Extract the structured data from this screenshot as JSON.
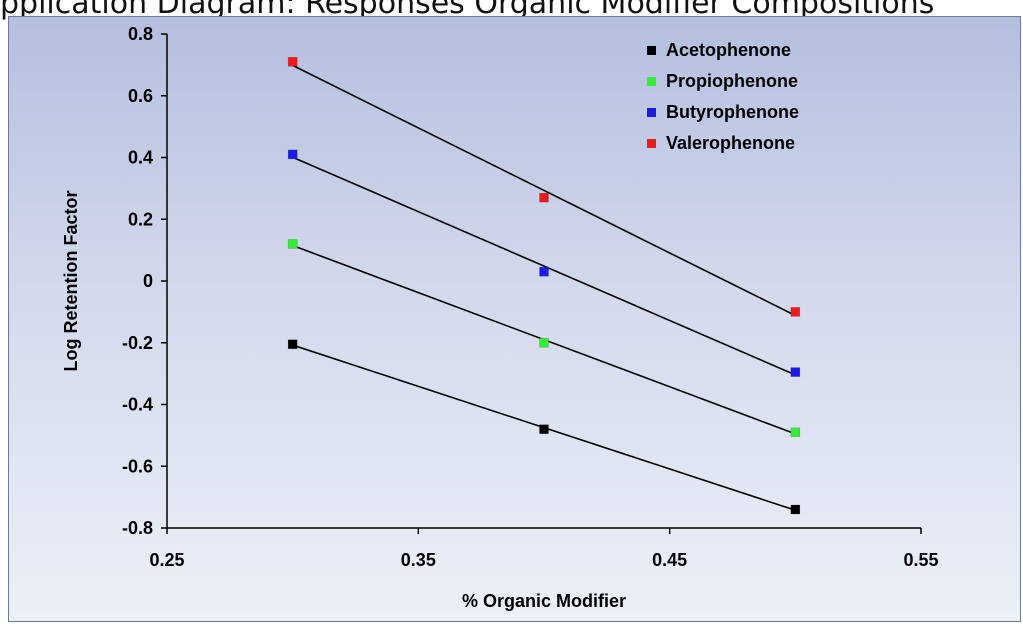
{
  "header_text": "pplication Diagram: Responses Organic Modifier Compositions",
  "chart_data": {
    "type": "scatter",
    "title": "",
    "xlabel": "% Organic Modifier",
    "ylabel": "Log Retention Factor",
    "xlim": [
      0.25,
      0.55
    ],
    "ylim": [
      -0.8,
      0.8
    ],
    "x_ticks": [
      "0.25",
      "0.35",
      "0.45",
      "0.55"
    ],
    "y_ticks": [
      "0.8",
      "0.6",
      "0.4",
      "0.2",
      "0",
      "-0.2",
      "-0.4",
      "-0.6",
      "-0.8"
    ],
    "grid": false,
    "legend_position": "top-right",
    "trendlines": "linear",
    "x": [
      0.3,
      0.4,
      0.5
    ],
    "series": [
      {
        "name": "Acetophenone",
        "color": "#000000",
        "values": [
          -0.205,
          -0.48,
          -0.74
        ]
      },
      {
        "name": "Propiophenone",
        "color": "#33ee33",
        "values": [
          0.12,
          -0.2,
          -0.49
        ]
      },
      {
        "name": "Butyrophenone",
        "color": "#1a1aee",
        "values": [
          0.41,
          0.03,
          -0.295
        ]
      },
      {
        "name": "Valerophenone",
        "color": "#ee1a1a",
        "values": [
          0.71,
          0.27,
          -0.1
        ]
      }
    ]
  }
}
